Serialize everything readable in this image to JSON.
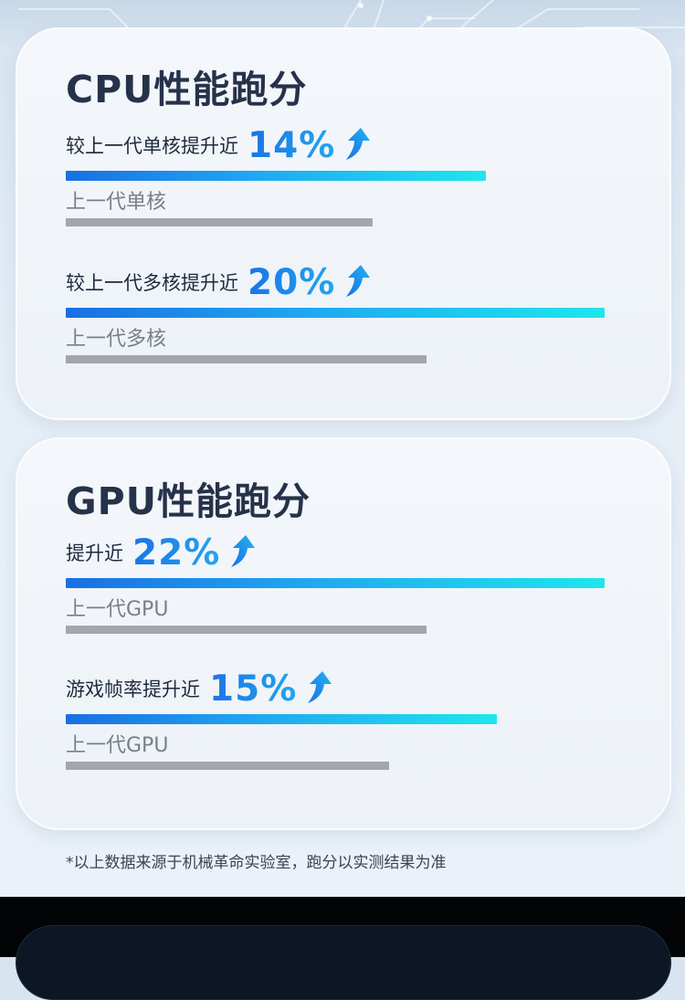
{
  "cpu": {
    "title": "CPU性能跑分",
    "single": {
      "label": "较上一代单核提升近",
      "value": "14%",
      "prev_label": "上一代单核",
      "new_ratio": 0.78,
      "prev_ratio": 0.57
    },
    "multi": {
      "label": "较上一代多核提升近",
      "value": "20%",
      "prev_label": "上一代多核",
      "new_ratio": 1.0,
      "prev_ratio": 0.67
    }
  },
  "gpu": {
    "title": "GPU性能跑分",
    "overall": {
      "label": "提升近",
      "value": "22%",
      "prev_label": "上一代GPU",
      "new_ratio": 1.0,
      "prev_ratio": 0.67
    },
    "fps": {
      "label": "游戏帧率提升近",
      "value": "15%",
      "prev_label": "上一代GPU",
      "new_ratio": 0.8,
      "prev_ratio": 0.6
    }
  },
  "footnote": "*以上数据来源于机械革命实验室，跑分以实测结果为准",
  "icons": {
    "arrow": "up-arrow-icon"
  },
  "colors": {
    "accent": "#1f8ce8",
    "bar_start": "#1a6fe3",
    "bar_end": "#1ee6ee",
    "prev_bar": "#a3a6ac",
    "title": "#26324a"
  }
}
